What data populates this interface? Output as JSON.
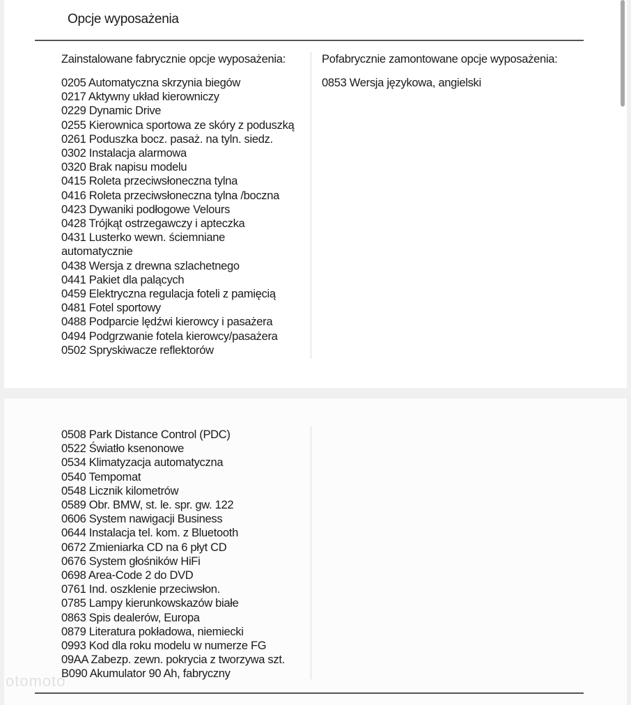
{
  "title": "Opcje wyposażenia",
  "factory": {
    "heading": "Zainstalowane fabrycznie opcje wyposażenia:",
    "items_page1": [
      "0205 Automatyczna skrzynia biegów",
      "0217 Aktywny układ kierowniczy",
      "0229 Dynamic Drive",
      "0255 Kierownica sportowa ze skóry z poduszką",
      "0261 Poduszka bocz. pasaż. na tyln. siedz.",
      "0302 Instalacja alarmowa",
      "0320 Brak napisu modelu",
      "0415 Roleta przeciwsłoneczna tylna",
      "0416 Roleta przeciwsłoneczna tylna /boczna",
      "0423 Dywaniki podłogowe Velours",
      "0428 Trójkąt ostrzegawczy i apteczka",
      "0431 Lusterko wewn. ściemniane\nautomatycznie",
      "0438 Wersja z drewna szlachetnego",
      "0441 Pakiet dla palących",
      "0459 Elektryczna regulacja foteli z pamięcią",
      "0481 Fotel sportowy",
      "0488 Podparcie lędźwi kierowcy i pasażera",
      "0494 Podgrzwanie fotela kierowcy/pasażera",
      "0502 Spryskiwacze reflektorów"
    ],
    "items_page2": [
      "0508 Park Distance Control (PDC)",
      "0522 Światło ksenonowe",
      "0534 Klimatyzacja automatyczna",
      "0540 Tempomat",
      "0548 Licznik kilometrów",
      "0589 Obr. BMW, st. le. spr. gw. 122",
      "0606 System nawigacji Business",
      "0644 Instalacja tel. kom. z Bluetooth",
      "0672 Zmieniarka CD na 6 płyt CD",
      "0676 System głośników HiFi",
      "0698 Area-Code 2 do DVD",
      "0761 Ind. oszklenie przeciwsłon.",
      "0785 Lampy kierunkowskazów białe",
      "0863 Spis dealerów, Europa",
      "0879 Literatura pokładowa, niemiecki",
      "0993 Kod dla roku modelu w numerze FG",
      "09AA Zabezp. zewn. pokrycia z tworzywa szt.",
      "B090 Akumulator 90 Ah, fabryczny"
    ]
  },
  "post_factory": {
    "heading": "Pofabrycznie zamontowane opcje wyposażenia:",
    "items": [
      "0853 Wersja językowa, angielski"
    ]
  },
  "watermark": "otomoto"
}
